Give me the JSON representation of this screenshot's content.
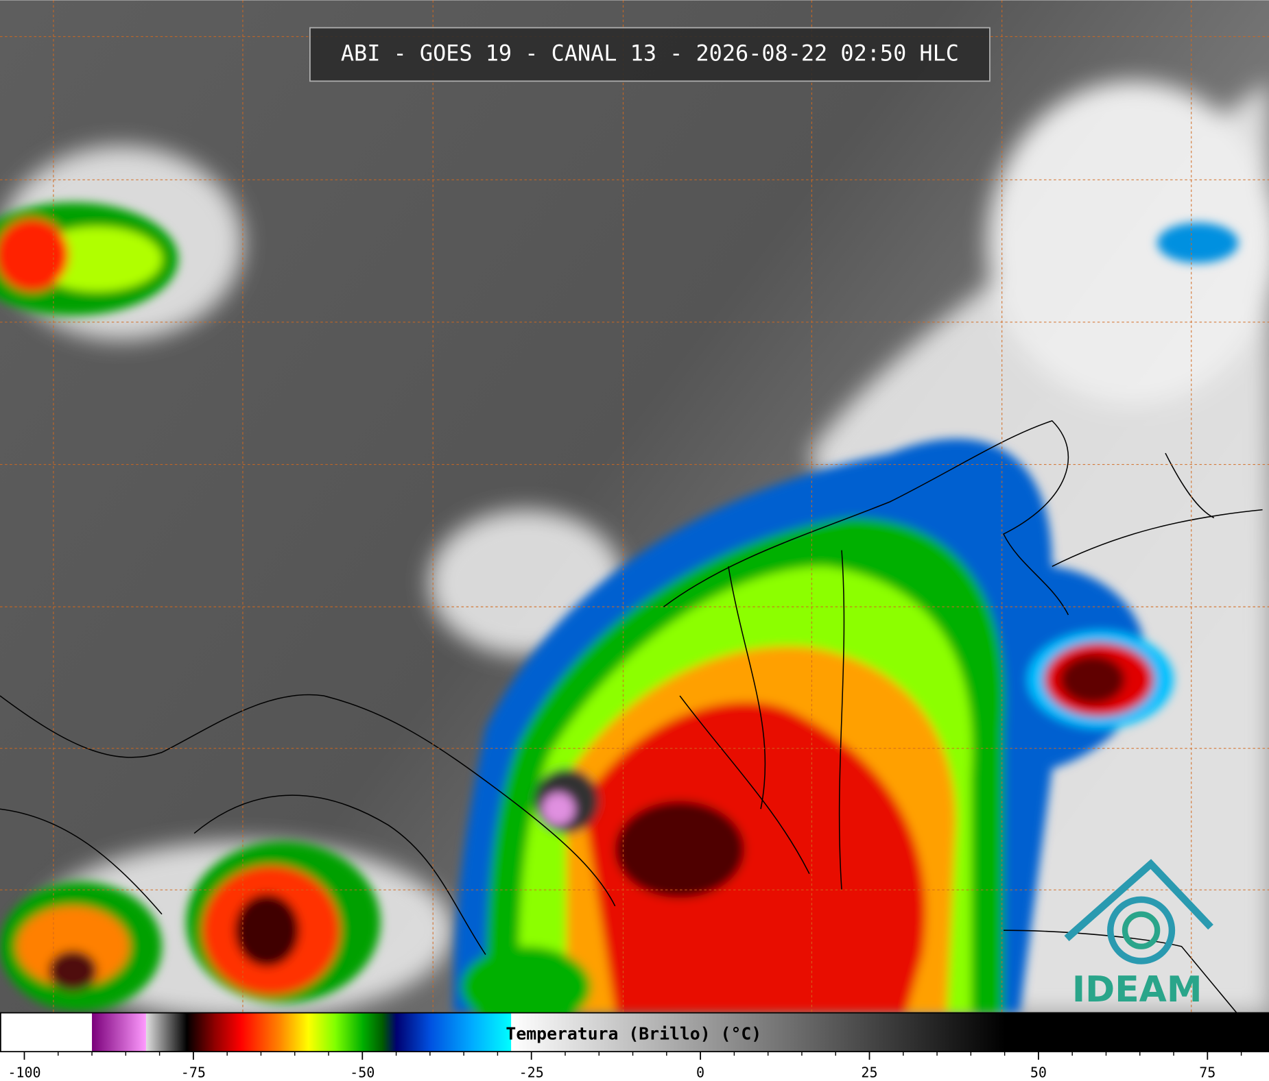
{
  "header": {
    "title": "ABI - GOES 19 - CANAL 13 - 2026-08-22 02:50 HLC"
  },
  "logo": {
    "text": "IDEAM"
  },
  "chart_data": {
    "type": "colorbar",
    "label": "Temperatura (Brillo) (°C)",
    "xlim": [
      -103.6,
      84.1
    ],
    "xticks": [
      -100,
      -75,
      -50,
      -25,
      0,
      25,
      50,
      75
    ],
    "xminorticks": [
      -95,
      -90,
      -85,
      -80,
      -70,
      -65,
      -60,
      -55,
      -45,
      -40,
      -35,
      -30,
      -20,
      -15,
      -10,
      -5,
      5,
      10,
      15,
      20,
      30,
      35,
      40,
      45,
      55,
      60,
      65,
      70,
      80
    ],
    "colormap": [
      {
        "value": -103.6,
        "color": "#ffffff"
      },
      {
        "value": -90,
        "color": "#ffffff"
      },
      {
        "value": -90,
        "color": "#7a007a"
      },
      {
        "value": -82,
        "color": "#ff9cff"
      },
      {
        "value": -82,
        "color": "#e0e0e0"
      },
      {
        "value": -76,
        "color": "#000000"
      },
      {
        "value": -72,
        "color": "#8b0000"
      },
      {
        "value": -68,
        "color": "#ff0000"
      },
      {
        "value": -62,
        "color": "#ff8c00"
      },
      {
        "value": -58,
        "color": "#ffff00"
      },
      {
        "value": -54,
        "color": "#7fff00"
      },
      {
        "value": -50,
        "color": "#00b000"
      },
      {
        "value": -47,
        "color": "#005a00"
      },
      {
        "value": -45,
        "color": "#000070"
      },
      {
        "value": -40,
        "color": "#0050e0"
      },
      {
        "value": -34,
        "color": "#00a8ff"
      },
      {
        "value": -28,
        "color": "#00ffff"
      },
      {
        "value": -28,
        "color": "#ffffff"
      },
      {
        "value": 45,
        "color": "#000000"
      },
      {
        "value": 84.1,
        "color": "#000000"
      }
    ]
  }
}
